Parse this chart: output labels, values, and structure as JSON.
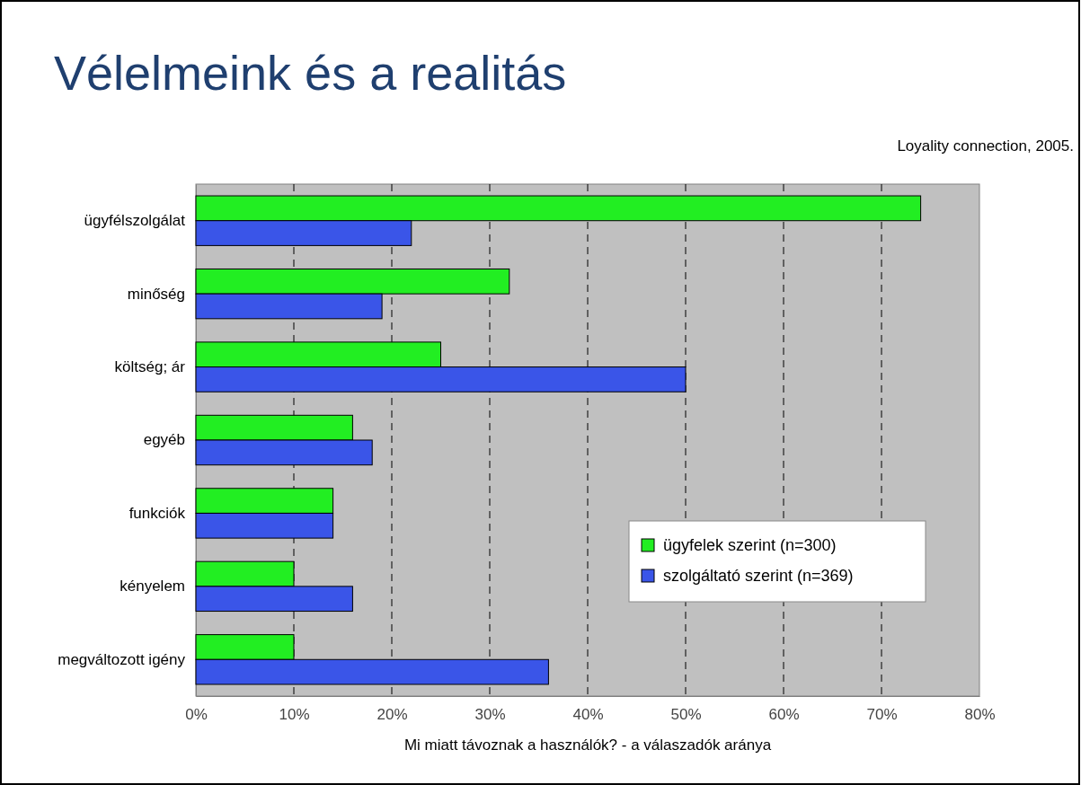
{
  "chart_data": {
    "type": "bar",
    "orientation": "horizontal",
    "title": "Vélelmeink és a realitás",
    "annotations": [
      "Loyality connection, 2005."
    ],
    "xlabel": "Mi miatt távoznak a használók?   -   a válaszadók aránya",
    "categories": [
      "ügyfélszolgálat",
      "minőség",
      "költség; ár",
      "egyéb",
      "funkciók",
      "kényelem",
      "megváltozott igény"
    ],
    "series": [
      {
        "name": "ügyfelek szerint (n=300)",
        "color": "#22ee22",
        "values": [
          74,
          32,
          25,
          16,
          14,
          10,
          10
        ]
      },
      {
        "name": "szolgáltató szerint (n=369)",
        "color": "#3a55e8",
        "values": [
          22,
          19,
          50,
          18,
          14,
          16,
          36
        ]
      }
    ],
    "xlim": [
      0,
      80
    ],
    "xticks": [
      {
        "value": 0,
        "label": "0%"
      },
      {
        "value": 10,
        "label": "10%"
      },
      {
        "value": 20,
        "label": "20%"
      },
      {
        "value": 30,
        "label": "30%"
      },
      {
        "value": 40,
        "label": "40%"
      },
      {
        "value": 50,
        "label": "50%"
      },
      {
        "value": 60,
        "label": "60%"
      },
      {
        "value": 70,
        "label": "70%"
      },
      {
        "value": 80,
        "label": "80%"
      }
    ],
    "grid": "x",
    "legend": "bottom right"
  }
}
